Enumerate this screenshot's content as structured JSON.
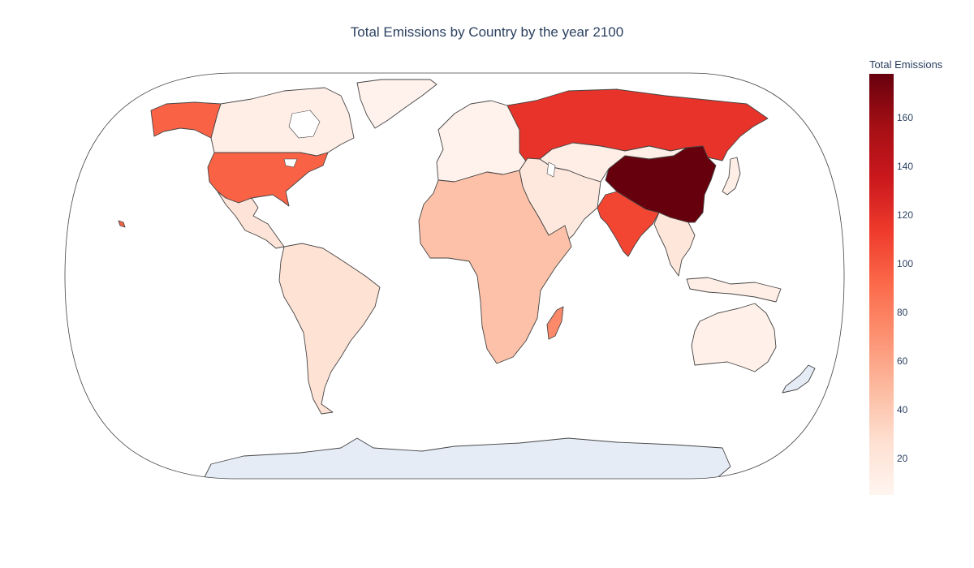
{
  "chart_data": {
    "type": "choropleth",
    "title": "Total Emissions by Country by the year 2100",
    "projection": "natural earth",
    "colorscale": "Reds",
    "colorscale_stops": [
      "#fff5f0",
      "#fee0d2",
      "#fcbba1",
      "#fc9272",
      "#fb6a4a",
      "#ef3b2c",
      "#cb181d",
      "#a50f15",
      "#67000d"
    ],
    "colorbar": {
      "title": "Total Emissions",
      "range": [
        5,
        178
      ],
      "ticks": [
        20,
        40,
        60,
        80,
        100,
        120,
        140,
        160
      ]
    },
    "no_data_color": "#e5ecf6",
    "values": [
      {
        "region": "China",
        "value": 178
      },
      {
        "region": "Russia",
        "value": 118
      },
      {
        "region": "India",
        "value": 108
      },
      {
        "region": "United States",
        "value": 95
      },
      {
        "region": "Alaska",
        "value": 95
      },
      {
        "region": "Africa",
        "value": 45
      },
      {
        "region": "South America",
        "value": 25
      },
      {
        "region": "Mexico",
        "value": 22
      },
      {
        "region": "Middle East",
        "value": 18
      },
      {
        "region": "Southeast Asia",
        "value": 20
      },
      {
        "region": "Central Asia",
        "value": 12
      },
      {
        "region": "Europe",
        "value": 8
      },
      {
        "region": "Canada",
        "value": 12
      },
      {
        "region": "Australia",
        "value": 10
      },
      {
        "region": "Greenland",
        "value": 8
      },
      {
        "region": "Indonesia",
        "value": 12
      },
      {
        "region": "Japan",
        "value": 12
      },
      {
        "region": "Madagascar",
        "value": 75
      }
    ]
  }
}
